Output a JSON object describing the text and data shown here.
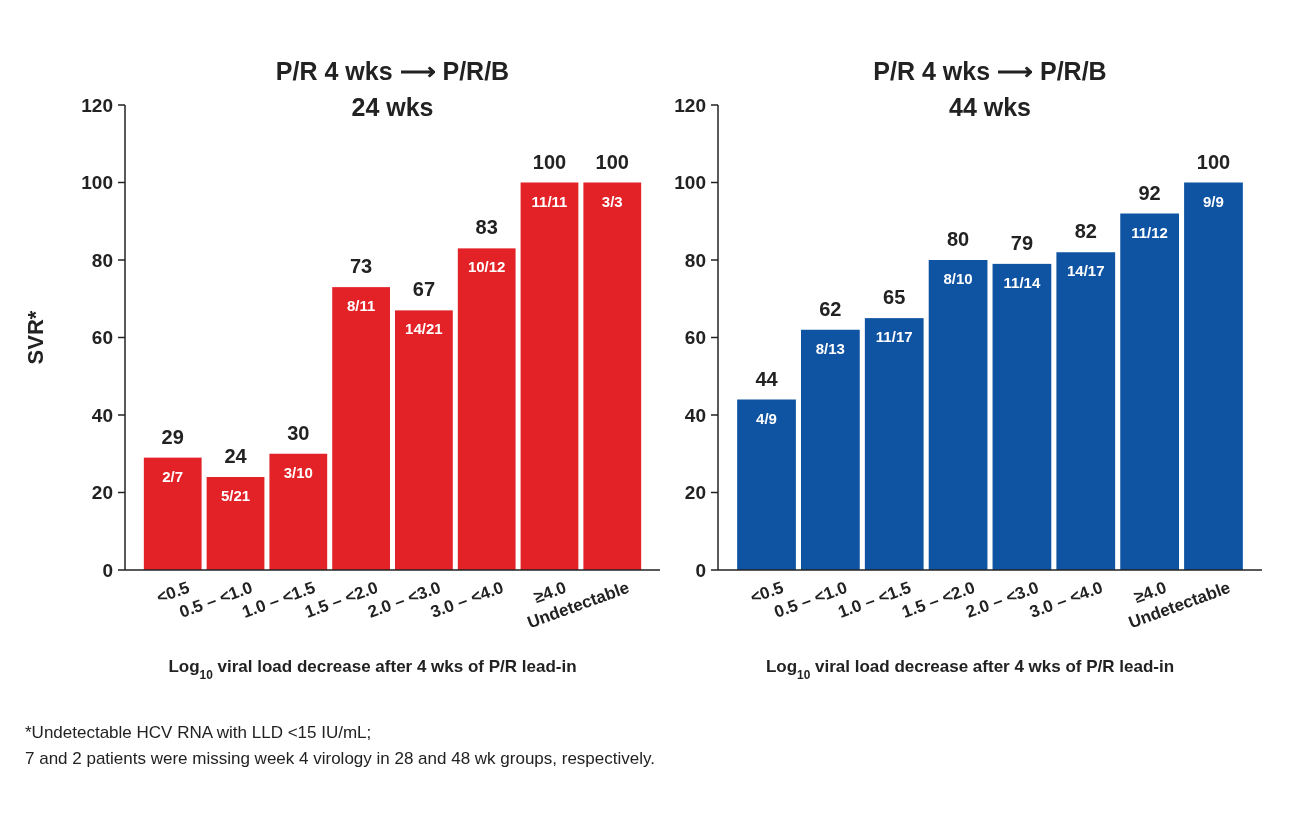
{
  "chart_data": [
    {
      "type": "bar",
      "title": "P/R 4 wks ⟶ P/R/B\n24 wks",
      "ylabel": "SVR*",
      "xlabel": "Log$_{10}$ viral load decrease after 4 wks of P/R lead-in",
      "categories": [
        "<0.5",
        "0.5 – <1.0",
        "1.0 – <1.5",
        "1.5 – <2.0",
        "2.0 – <3.0",
        "3.0 – <4.0",
        "≥4.0",
        "Undetectable"
      ],
      "values": [
        29,
        24,
        30,
        73,
        67,
        83,
        100,
        100
      ],
      "color": "#e32228",
      "ylim": [
        0,
        120
      ],
      "yticks": [
        0,
        20,
        40,
        60,
        80,
        100,
        120
      ],
      "grid": false,
      "data_labels": true,
      "annotations": [
        {
          "text": "2/7",
          "x": "<0.5",
          "y": 29
        },
        {
          "text": "5/21",
          "x": "0.5 – <1.0",
          "y": 24
        },
        {
          "text": "3/10",
          "x": "1.0 – <1.5",
          "y": 30
        },
        {
          "text": "8/11",
          "x": "1.5 – <2.0",
          "y": 73
        },
        {
          "text": "14/21",
          "x": "2.0 – <3.0",
          "y": 67
        },
        {
          "text": "10/12",
          "x": "3.0 – <4.0",
          "y": 83
        },
        {
          "text": "11/11",
          "x": "≥4.0",
          "y": 100
        },
        {
          "text": "3/3",
          "x": "Undetectable",
          "y": 100
        },
        "*Undetectable HCV RNA with LLD <15 IU/mL;",
        "7 and 2 patients were missing week 4 virology in 28 and 48 wk groups, respectively."
      ]
    },
    {
      "type": "bar",
      "title": "P/R 4 wks ⟶ P/R/B\n44 wks",
      "xlabel": "Log$_{10}$ viral load decrease after 4 wks of P/R lead-in",
      "categories": [
        "<0.5",
        "0.5 – <1.0",
        "1.0 – <1.5",
        "1.5 – <2.0",
        "2.0 – <3.0",
        "3.0 – <4.0",
        "≥4.0",
        "Undetectable"
      ],
      "values": [
        44,
        62,
        65,
        80,
        79,
        82,
        92,
        100
      ],
      "color": "#0f54a2",
      "ylim": [
        0,
        120
      ],
      "yticks": [
        0,
        20,
        40,
        60,
        80,
        100,
        120
      ],
      "grid": false,
      "data_labels": true,
      "annotations": [
        {
          "text": "4/9",
          "x": "<0.5",
          "y": 44
        },
        {
          "text": "8/13",
          "x": "0.5 – <1.0",
          "y": 62
        },
        {
          "text": "11/17",
          "x": "1.0 – <1.5",
          "y": 65
        },
        {
          "text": "8/10",
          "x": "1.5 – <2.0",
          "y": 80
        },
        {
          "text": "11/14",
          "x": "2.0 – <3.0",
          "y": 79
        },
        {
          "text": "14/17",
          "x": "3.0 – <4.0",
          "y": 82
        },
        {
          "text": "11/12",
          "x": "≥4.0",
          "y": 92
        },
        {
          "text": "9/9",
          "x": "Undetectable",
          "y": 100
        }
      ]
    }
  ]
}
